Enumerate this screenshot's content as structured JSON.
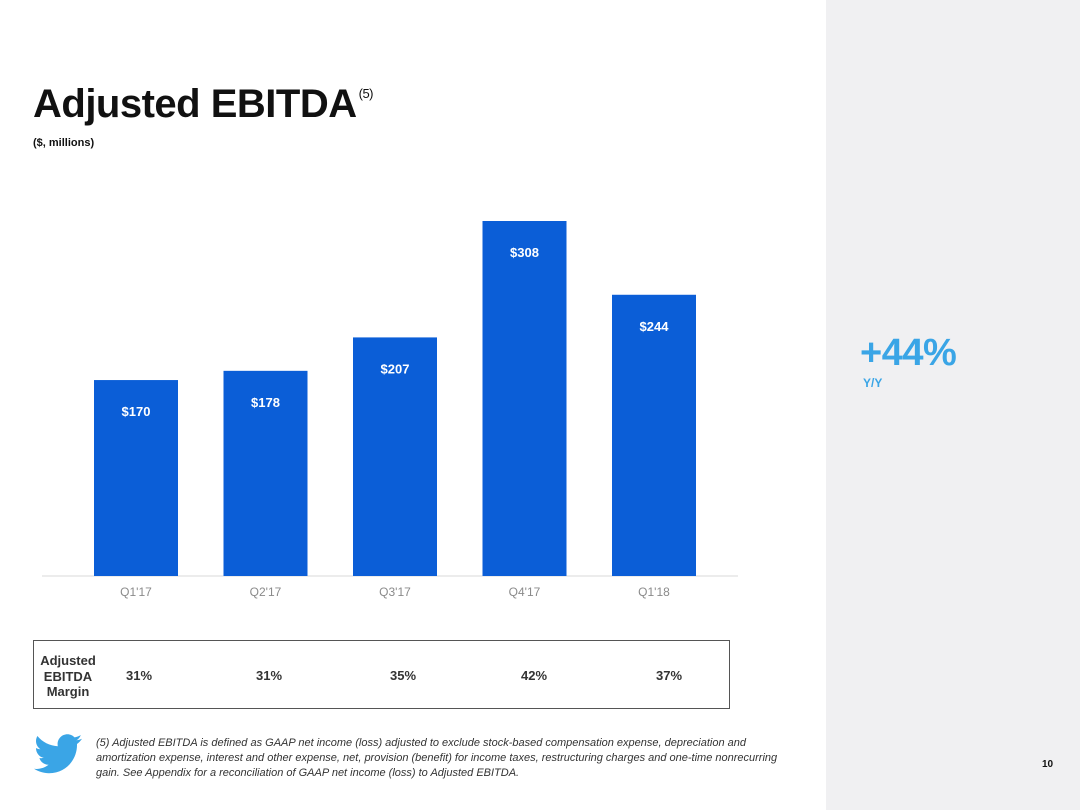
{
  "slide": {
    "title": "Adjusted EBITDA",
    "title_footnote_ref": "(5)",
    "subtitle": "($, millions)",
    "page_number": "10"
  },
  "growth": {
    "value": "+44%",
    "label": "Y/Y"
  },
  "chart_data": {
    "type": "bar",
    "title": "Adjusted EBITDA",
    "ylabel": "($, millions)",
    "categories": [
      "Q1'17",
      "Q2'17",
      "Q3'17",
      "Q4'17",
      "Q1'18"
    ],
    "values": [
      170,
      178,
      207,
      308,
      244
    ],
    "data_labels": [
      "$170",
      "$178",
      "$207",
      "$308",
      "$244"
    ],
    "ylim": [
      0,
      308
    ],
    "grid": false,
    "bar_color": "#0b5ed7"
  },
  "margin_table": {
    "label": "Adjusted EBITDA Margin",
    "values": [
      "31%",
      "31%",
      "35%",
      "42%",
      "37%"
    ]
  },
  "footnote": "(5) Adjusted EBITDA is defined as GAAP net income (loss) adjusted to exclude stock-based compensation expense, depreciation and amortization expense, interest and other expense, net, provision (benefit) for income taxes, restructuring charges and one-time nonrecurring gain. See Appendix for a reconciliation of GAAP net income (loss) to Adjusted EBITDA.",
  "colors": {
    "accent": "#3aa5e6",
    "bar": "#0b5ed7",
    "panel": "#f0f0f2"
  },
  "logo": "twitter-bird-icon"
}
